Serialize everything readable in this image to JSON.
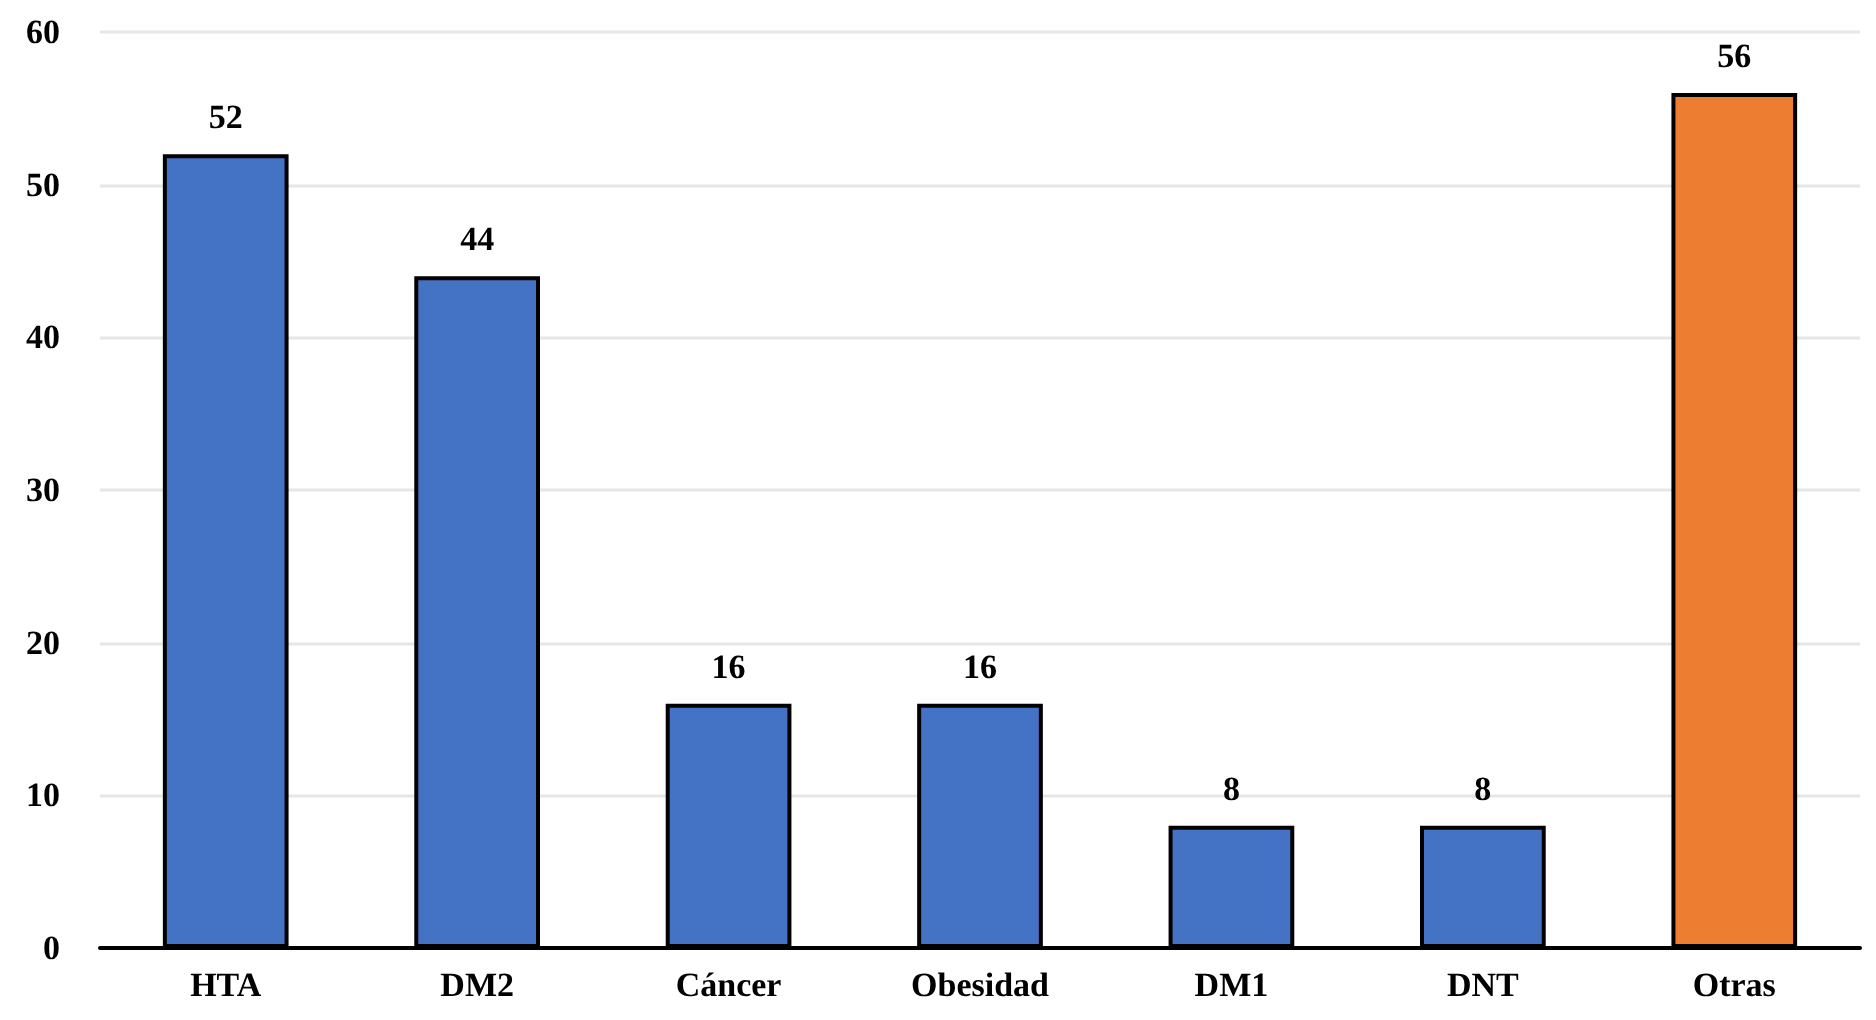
{
  "chart_data": {
    "type": "bar",
    "categories": [
      "HTA",
      "DM2",
      "Cáncer",
      "Obesidad",
      "DM1",
      "DNT",
      "Otras"
    ],
    "values": [
      52,
      44,
      16,
      16,
      8,
      8,
      56
    ],
    "colors": [
      "#4472c4",
      "#4472c4",
      "#4472c4",
      "#4472c4",
      "#4472c4",
      "#4472c4",
      "#ed7d31"
    ],
    "ylim": [
      0,
      60
    ],
    "yticks": [
      0,
      10,
      20,
      30,
      40,
      50,
      60
    ],
    "grid": "y",
    "data_labels": true
  }
}
